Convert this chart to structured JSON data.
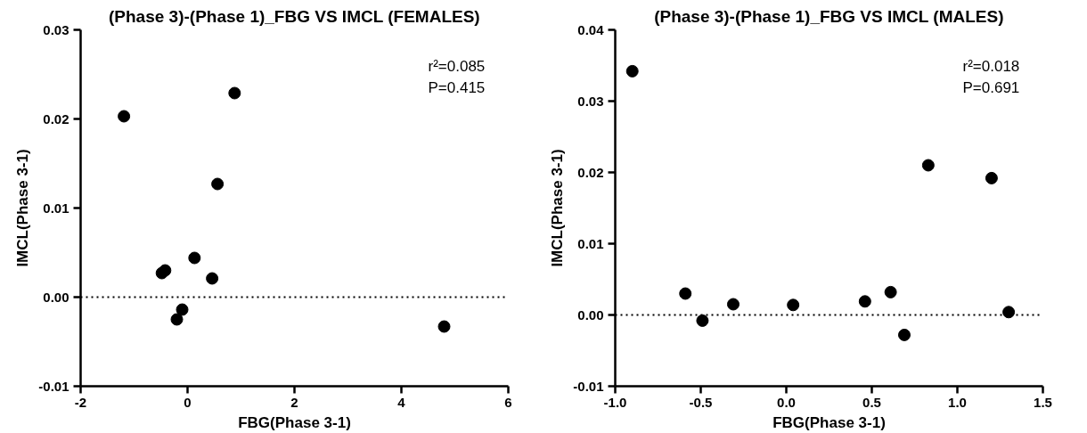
{
  "chart_data": [
    {
      "type": "scatter",
      "title": "(Phase 3)-(Phase 1)_FBG VS IMCL (FEMALES)",
      "xlabel": "FBG(Phase 3-1)",
      "ylabel": "IMCL(Phase 3-1)",
      "marker": "circle",
      "grid": false,
      "x": [
        -1.19,
        0.88,
        0.56,
        0.13,
        -0.42,
        -0.48,
        0.46,
        -0.1,
        -0.2,
        4.8
      ],
      "series": [
        {
          "color": "#000000",
          "values": [
            0.0203,
            0.0229,
            0.0127,
            0.0044,
            0.003,
            0.0027,
            0.0021,
            -0.0014,
            -0.0025,
            -0.0033
          ]
        }
      ],
      "xlim": [
        -2,
        6
      ],
      "xticks": [
        -2,
        0,
        2,
        4,
        6
      ],
      "ylim": [
        -0.01,
        0.03
      ],
      "yticks": [
        {
          "value": -0.01,
          "label": "-0.01"
        },
        {
          "value": 0,
          "label": "0.00"
        },
        {
          "value": 0.01,
          "label": "0.01"
        },
        {
          "value": 0.02,
          "label": "0.02"
        },
        {
          "value": 0.03,
          "label": "0.03"
        }
      ],
      "ref_lines": [
        {
          "axis": "y",
          "value": 0,
          "line_style": "dotted",
          "color": "#000000"
        }
      ],
      "annotations": [
        "r²=0.085",
        "P=0.415"
      ]
    },
    {
      "type": "scatter",
      "title": "(Phase 3)-(Phase 1)_FBG VS IMCL (MALES)",
      "xlabel": "FBG(Phase 3-1)",
      "ylabel": "IMCL(Phase 3-1)",
      "marker": "circle",
      "grid": false,
      "x": [
        -0.9,
        -0.59,
        -0.49,
        -0.31,
        0.04,
        0.46,
        0.61,
        0.69,
        0.83,
        1.2,
        1.3
      ],
      "series": [
        {
          "color": "#000000",
          "values": [
            0.0342,
            0.003,
            -0.0008,
            0.0015,
            0.0014,
            0.0019,
            0.0032,
            -0.0028,
            0.021,
            0.0192,
            0.0004
          ]
        }
      ],
      "xlim": [
        -1.0,
        1.5
      ],
      "xticks": [
        {
          "value": -1,
          "label": "-1.0"
        },
        {
          "value": -0.5,
          "label": "-0.5"
        },
        {
          "value": 0,
          "label": "0.0"
        },
        {
          "value": 0.5,
          "label": "0.5"
        },
        {
          "value": 1,
          "label": "1.0"
        },
        {
          "value": 1.5,
          "label": "1.5"
        }
      ],
      "ylim": [
        -0.01,
        0.04
      ],
      "yticks": [
        {
          "value": -0.01,
          "label": "-0.01"
        },
        {
          "value": 0,
          "label": "0.00"
        },
        {
          "value": 0.01,
          "label": "0.01"
        },
        {
          "value": 0.02,
          "label": "0.02"
        },
        {
          "value": 0.03,
          "label": "0.03"
        },
        {
          "value": 0.04,
          "label": "0.04"
        }
      ],
      "ref_lines": [
        {
          "axis": "y",
          "value": 0,
          "line_style": "dotted",
          "color": "#000000"
        }
      ],
      "annotations": [
        "r²=0.018",
        "P=0.691"
      ]
    }
  ]
}
